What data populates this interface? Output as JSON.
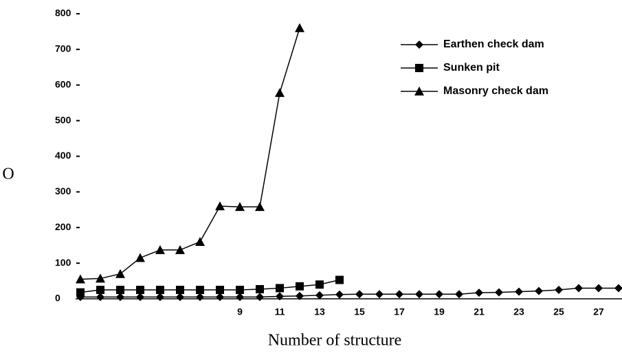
{
  "chart_data": {
    "type": "line",
    "x_label": "Number of structure",
    "y_label": "O",
    "categories": [
      null,
      null,
      null,
      null,
      null,
      null,
      null,
      null,
      "9",
      null,
      "11",
      null,
      "13",
      null,
      "15",
      null,
      "17",
      null,
      "19",
      null,
      "21",
      null,
      "23",
      null,
      "25",
      null,
      "27",
      null
    ],
    "series": [
      {
        "name": "Earthen check dam",
        "color": "#000000",
        "marker": "diamond",
        "values": [
          5,
          5,
          5,
          5,
          5,
          5,
          5,
          5,
          5,
          5,
          7,
          8,
          10,
          12,
          13,
          13,
          13,
          13,
          13,
          13,
          17,
          18,
          20,
          22,
          25,
          30,
          30,
          30
        ]
      },
      {
        "name": "Sunken pit",
        "color": "#000000",
        "marker": "square",
        "values": [
          18,
          25,
          25,
          25,
          25,
          25,
          25,
          25,
          25,
          27,
          30,
          35,
          40,
          53,
          null,
          null,
          null,
          null,
          null,
          null,
          null,
          null,
          null,
          null,
          null,
          null,
          null,
          null
        ]
      },
      {
        "name": "Masonry check dam",
        "color": "#000000",
        "marker": "triangle",
        "values": [
          55,
          57,
          70,
          115,
          137,
          137,
          160,
          260,
          258,
          258,
          578,
          760,
          null,
          null,
          null,
          null,
          null,
          null,
          null,
          null,
          null,
          null,
          null,
          null,
          null,
          null,
          null,
          null
        ]
      }
    ],
    "ylim": [
      0,
      800
    ],
    "yticks": [
      0,
      100,
      200,
      300,
      400,
      500,
      600,
      700,
      800
    ],
    "legend": "upper right",
    "grid": false
  }
}
